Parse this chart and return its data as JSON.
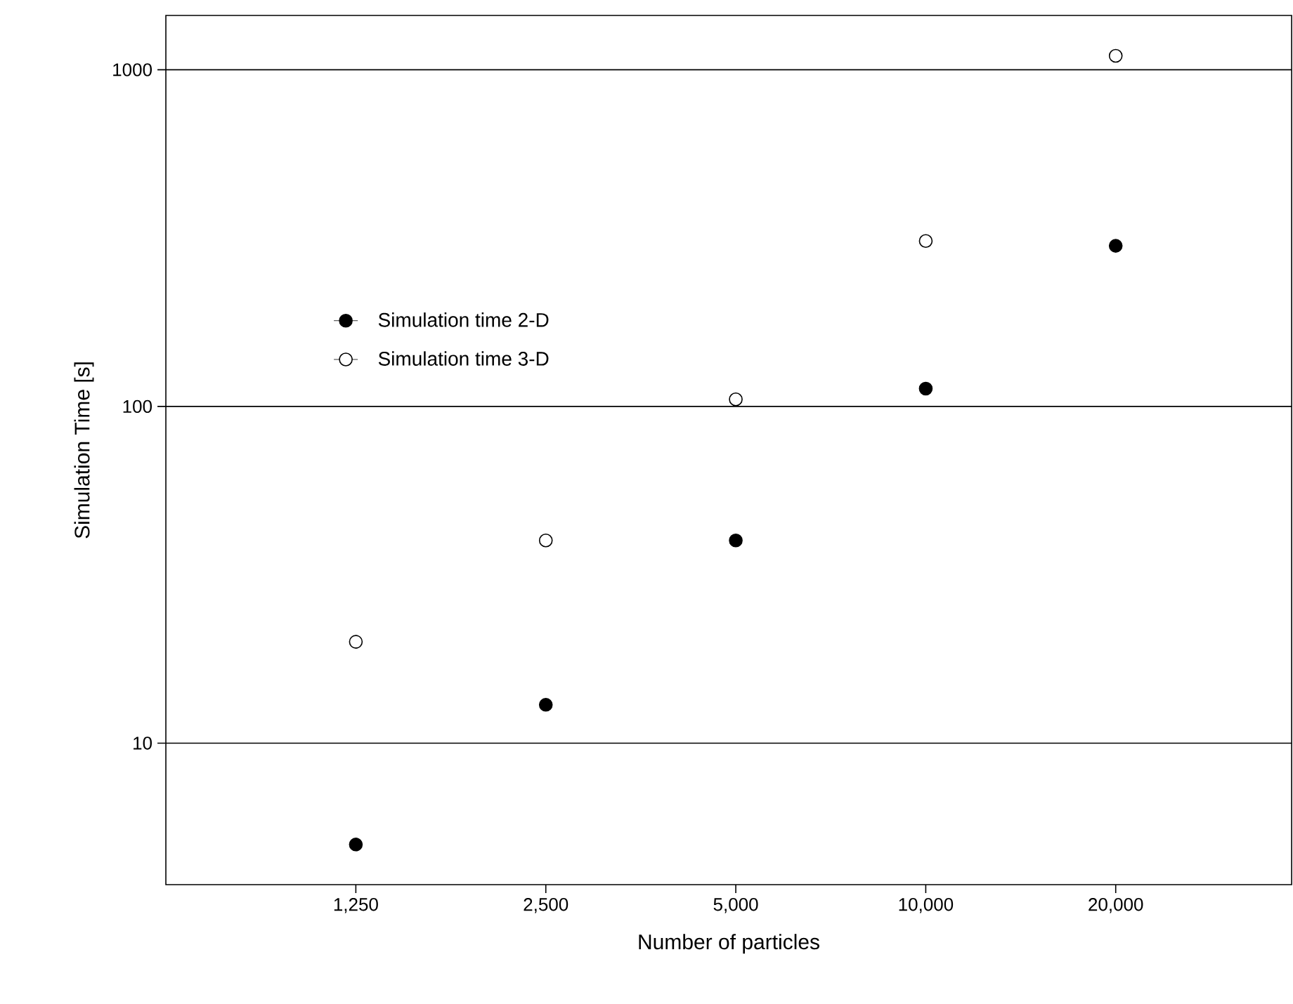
{
  "chart_data": {
    "type": "scatter",
    "xlabel": "Number of particles",
    "ylabel": "Simulation Time [s]",
    "x": [
      1250,
      2500,
      5000,
      10000,
      20000
    ],
    "series": [
      {
        "name": "Simulation time 2-D",
        "color": "#000000",
        "values": [
          5,
          13,
          40,
          113,
          300
        ]
      },
      {
        "name": "Simulation time 3-D",
        "color": "#ffffff",
        "values": [
          20,
          40,
          105,
          310,
          1100
        ]
      }
    ],
    "log": "xy",
    "xlim": [
      625,
      38000
    ],
    "ylim": [
      3.8,
      1450
    ],
    "xticks": [
      {
        "value": 1250,
        "label": "1,250"
      },
      {
        "value": 2500,
        "label": "2,500"
      },
      {
        "value": 5000,
        "label": "5,000"
      },
      {
        "value": 10000,
        "label": "10,000"
      },
      {
        "value": 20000,
        "label": "20,000"
      }
    ],
    "yticks": [
      10,
      100,
      1000
    ],
    "grid": "y",
    "legend": "left",
    "marker": "circle"
  }
}
